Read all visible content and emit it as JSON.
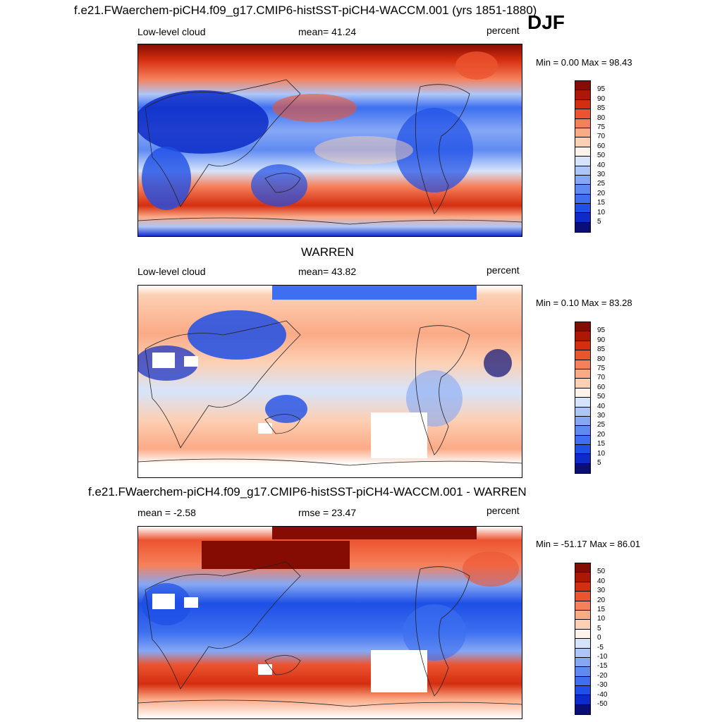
{
  "header": {
    "title": "f.e21.FWaerchem-piCH4.f09_g17.CMIP6-histSST-piCH4-WACCM.001 (yrs 1851-1880)",
    "season": "DJF"
  },
  "panels": [
    {
      "title": "",
      "left_label": "Low-level cloud",
      "center_label": "mean=  41.24",
      "right_label": "percent",
      "stats": "Min =   0.00 Max =  98.43",
      "colorbar_levels": [
        "95",
        "90",
        "85",
        "80",
        "75",
        "70",
        "60",
        "50",
        "40",
        "30",
        "25",
        "20",
        "15",
        "10",
        "5"
      ],
      "palette": "seq"
    },
    {
      "title": "WARREN",
      "left_label": "Low-level cloud",
      "center_label": "mean=  43.82",
      "right_label": "percent",
      "stats": "Min =   0.10 Max =  83.28",
      "colorbar_levels": [
        "95",
        "90",
        "85",
        "80",
        "75",
        "70",
        "60",
        "50",
        "40",
        "30",
        "25",
        "20",
        "15",
        "10",
        "5"
      ],
      "palette": "seq"
    },
    {
      "title": "f.e21.FWaerchem-piCH4.f09_g17.CMIP6-histSST-piCH4-WACCM.001 - WARREN",
      "left_label": "mean =  -2.58",
      "center_label": "rmse =  23.47",
      "right_label": "percent",
      "stats": "Min = -51.17 Max =  86.01",
      "colorbar_levels": [
        "50",
        "40",
        "30",
        "20",
        "15",
        "10",
        "5",
        "0",
        "-5",
        "-10",
        "-15",
        "-20",
        "-30",
        "-40",
        "-50"
      ],
      "palette": "diff"
    }
  ],
  "colors": {
    "scale": [
      "#0a0f78",
      "#0d2bc8",
      "#1e4fe6",
      "#3d6ff0",
      "#5f8af2",
      "#86a8f4",
      "#aec6f7",
      "#d6e4fb",
      "#fdf3ea",
      "#fcd0b4",
      "#fbaa86",
      "#f6805a",
      "#ec5430",
      "#d42e10",
      "#ac1706",
      "#850c02"
    ]
  }
}
